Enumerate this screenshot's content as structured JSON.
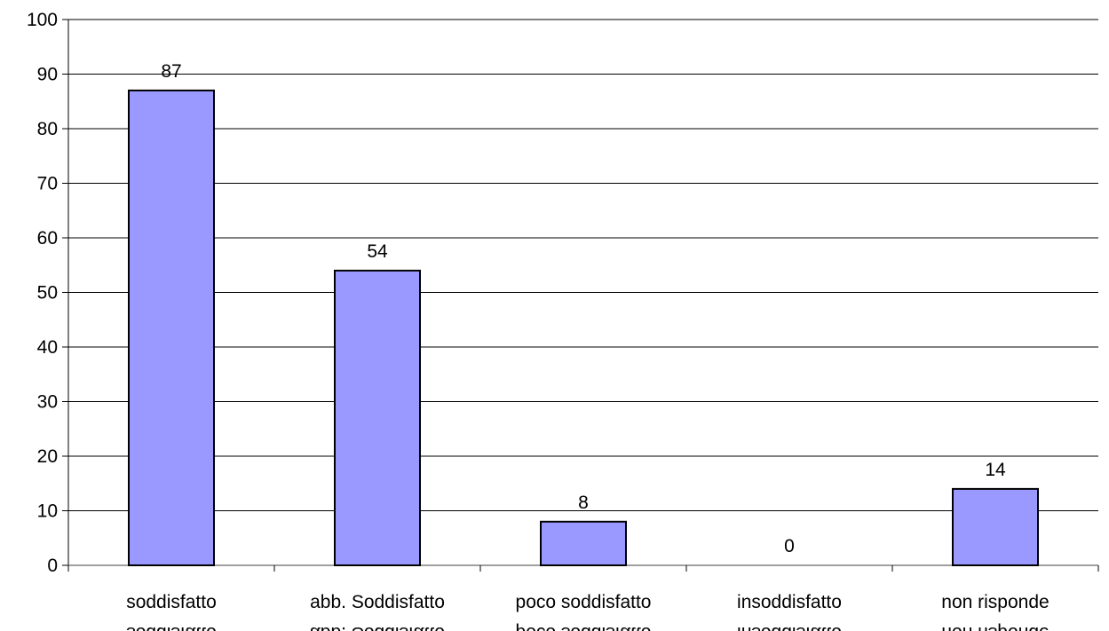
{
  "chart_data": {
    "type": "bar",
    "categories": [
      "soddisfatto",
      "abb. Soddisfatto",
      "poco soddisfatto",
      "insoddisfatto",
      "non risponde"
    ],
    "values": [
      87,
      54,
      8,
      0,
      14
    ],
    "data_labels": [
      "87",
      "54",
      "8",
      "0",
      "14"
    ],
    "title": "",
    "xlabel": "",
    "ylabel": "",
    "ylim": [
      0,
      100
    ],
    "yticks": [
      0,
      10,
      20,
      30,
      40,
      50,
      60,
      70,
      80,
      90,
      100
    ],
    "ytick_labels": [
      "0",
      "10",
      "20",
      "30",
      "40",
      "50",
      "60",
      "70",
      "80",
      "90",
      "100"
    ],
    "grid": true,
    "legend": "none",
    "colors": {
      "bar_fill": "#9999ff",
      "bar_stroke": "#000000",
      "grid": "#000000",
      "axis": "#000000"
    }
  }
}
